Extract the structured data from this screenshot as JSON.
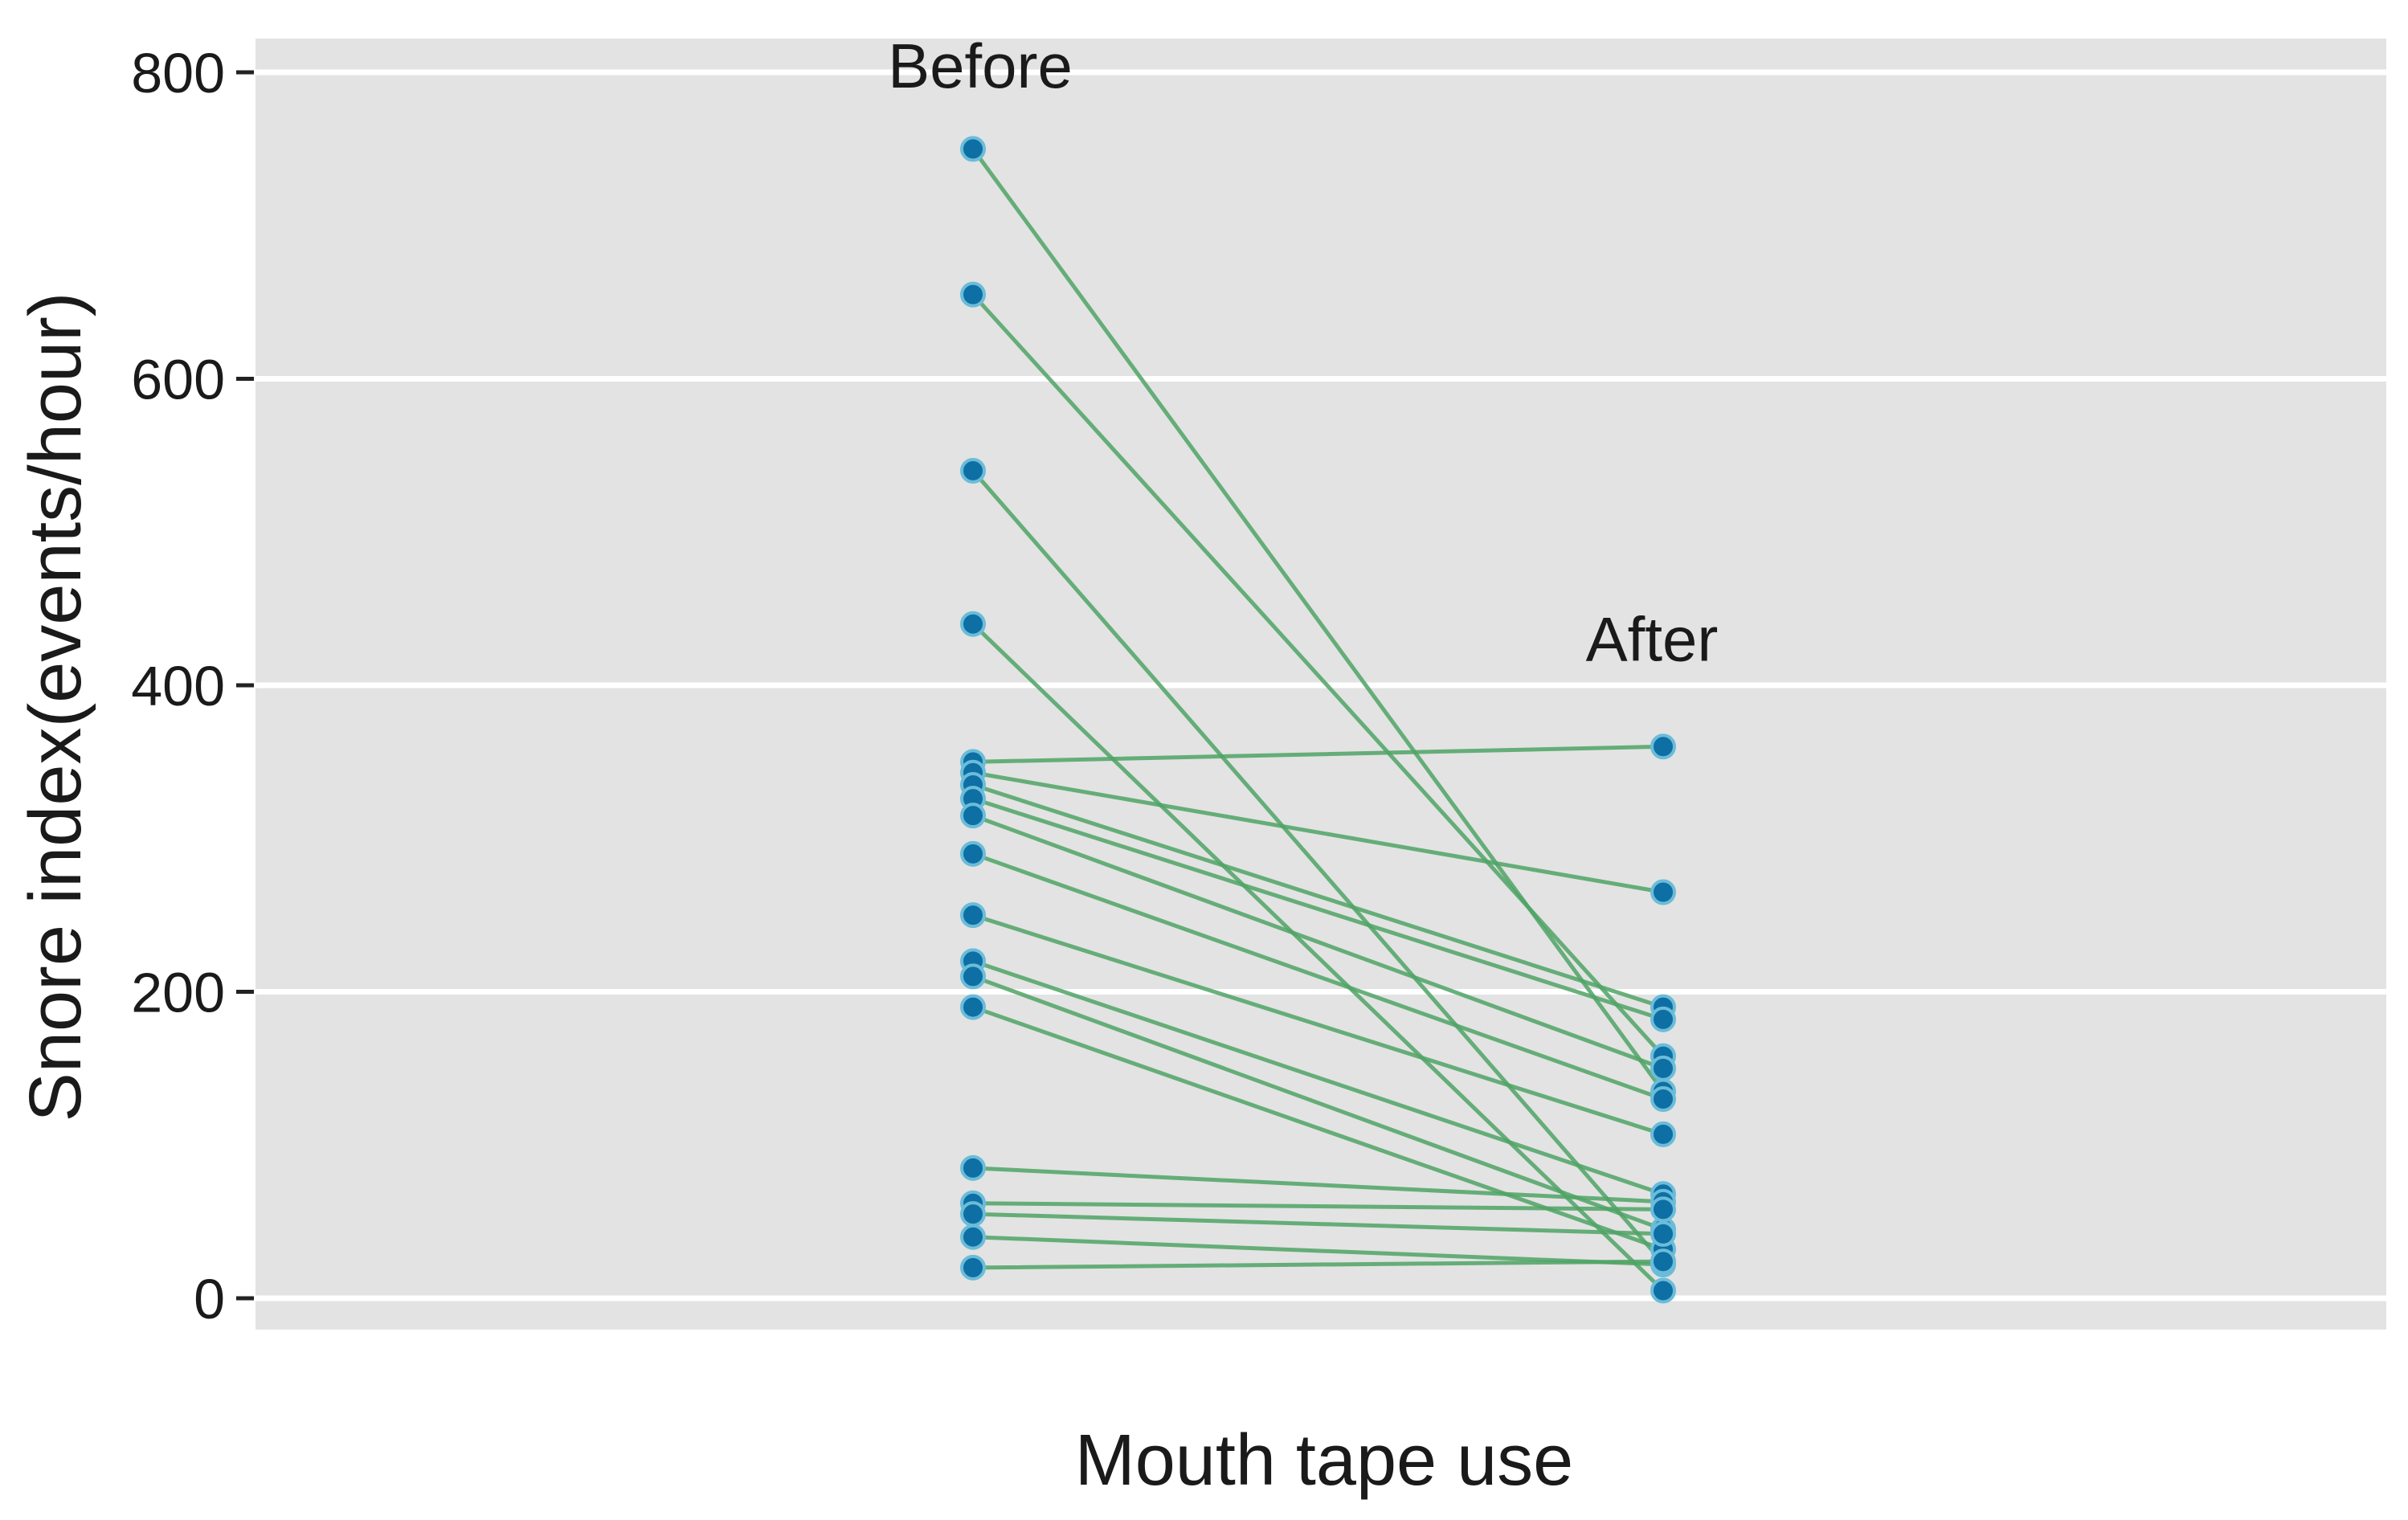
{
  "chart_data": {
    "type": "scatter",
    "subtype": "paired-slope",
    "title": "",
    "xlabel": "Mouth tape use",
    "ylabel": "Snore index(events/hour)",
    "ylim": [
      0,
      800
    ],
    "grid": "on",
    "legend": "none",
    "y_ticks": [
      800,
      600,
      400,
      200,
      0
    ],
    "columns": [
      {
        "key": "before",
        "label": "Before"
      },
      {
        "key": "after",
        "label": "After"
      }
    ],
    "annotations": [
      {
        "label": "Before",
        "column": "before",
        "at_value": 790
      },
      {
        "label": "After",
        "column": "after",
        "at_value": 416
      }
    ],
    "pairs": [
      {
        "before": 750,
        "after": 135
      },
      {
        "before": 655,
        "after": 158
      },
      {
        "before": 540,
        "after": 23
      },
      {
        "before": 440,
        "after": 5
      },
      {
        "before": 350,
        "after": 360
      },
      {
        "before": 343,
        "after": 265
      },
      {
        "before": 335,
        "after": 190
      },
      {
        "before": 326,
        "after": 182
      },
      {
        "before": 315,
        "after": 150
      },
      {
        "before": 290,
        "after": 130
      },
      {
        "before": 250,
        "after": 107
      },
      {
        "before": 220,
        "after": 68
      },
      {
        "before": 210,
        "after": 45
      },
      {
        "before": 190,
        "after": 32
      },
      {
        "before": 85,
        "after": 63
      },
      {
        "before": 62,
        "after": 58
      },
      {
        "before": 55,
        "after": 42
      },
      {
        "before": 40,
        "after": 22
      },
      {
        "before": 20,
        "after": 24
      }
    ],
    "colors": {
      "plot_background": "#e3e3e3",
      "gridline": "#ffffff",
      "dot_fill": "#0d6fa3",
      "dot_halo": "#6bbcd9",
      "line": "#4fa365",
      "text": "#1a1a1a",
      "tick_mark": "#222222"
    }
  }
}
